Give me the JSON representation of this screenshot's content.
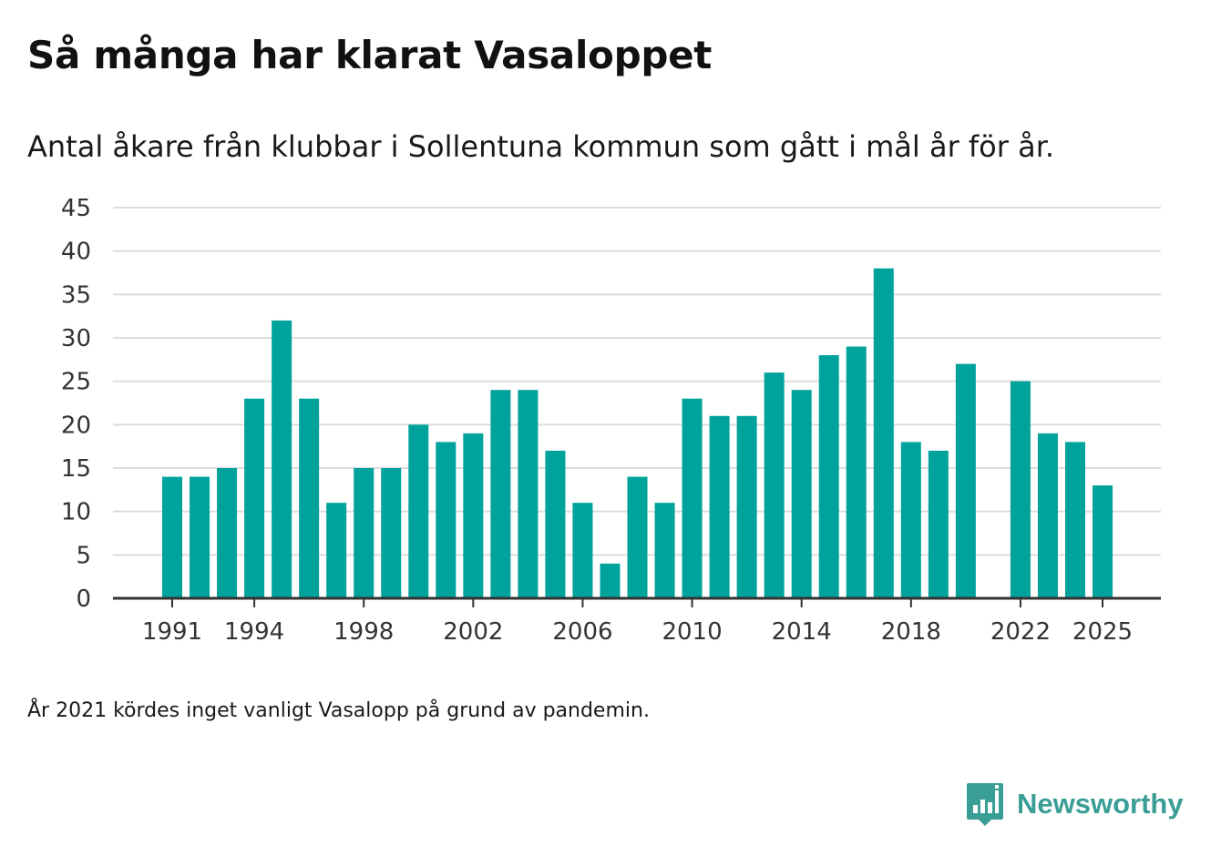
{
  "title": "Så många har klarat Vasaloppet",
  "subtitle": "Antal åkare från klubbar i Sollentuna kommun som gått i mål år för år.",
  "footnote": "År 2021 kördes inget vanligt Vasalopp på grund av pandemin.",
  "brand": {
    "name": "Newsworthy",
    "icon": "bar-chart-speech-bubble-icon",
    "color": "#3a9e96"
  },
  "colors": {
    "bar": "#00a39b",
    "grid": "#dcdcdc",
    "axis": "#333333"
  },
  "chart_data": {
    "type": "bar",
    "title": "Så många har klarat Vasaloppet",
    "xlabel": "",
    "ylabel": "",
    "ylim": [
      0,
      45
    ],
    "yticks": [
      0,
      5,
      10,
      15,
      20,
      25,
      30,
      35,
      40,
      45
    ],
    "xtick_labels": [
      "1991",
      "1994",
      "1998",
      "2002",
      "2006",
      "2010",
      "2014",
      "2018",
      "2022",
      "2025"
    ],
    "grid": true,
    "categories": [
      1991,
      1992,
      1993,
      1994,
      1995,
      1996,
      1997,
      1998,
      1999,
      2000,
      2001,
      2002,
      2003,
      2004,
      2005,
      2006,
      2007,
      2008,
      2009,
      2010,
      2011,
      2012,
      2013,
      2014,
      2015,
      2016,
      2017,
      2018,
      2019,
      2020,
      2021,
      2022,
      2023,
      2024,
      2025
    ],
    "values": [
      14,
      14,
      15,
      23,
      32,
      23,
      11,
      15,
      15,
      20,
      18,
      19,
      24,
      24,
      17,
      11,
      4,
      14,
      11,
      23,
      21,
      21,
      26,
      24,
      28,
      29,
      38,
      18,
      17,
      27,
      null,
      25,
      19,
      18,
      13
    ]
  }
}
